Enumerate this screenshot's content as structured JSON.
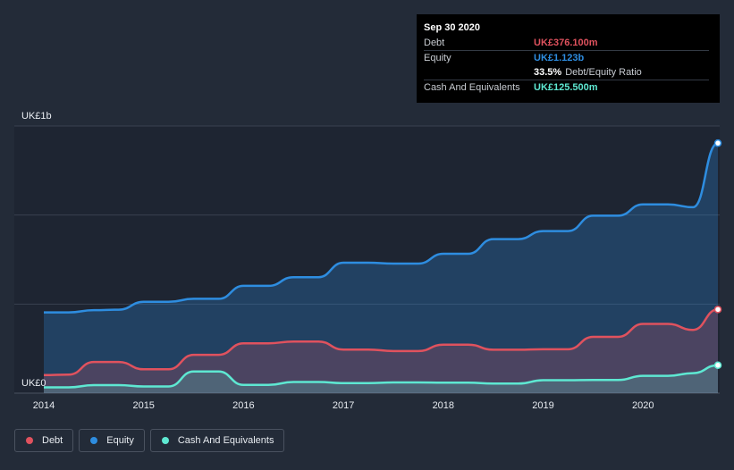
{
  "chart_data": {
    "type": "area",
    "x_axis": {
      "ticks": [
        "2014",
        "2015",
        "2016",
        "2017",
        "2018",
        "2019",
        "2020"
      ],
      "range": [
        2014.0,
        2020.75
      ]
    },
    "y_axis": {
      "top_label": "UK£1b",
      "bottom_label": "UK£0",
      "range": [
        0,
        1.2
      ]
    },
    "series": [
      {
        "name": "Equity",
        "color": "#2e8de0",
        "x": [
          2014.0,
          2014.25,
          2014.5,
          2014.75,
          2015.0,
          2015.25,
          2015.5,
          2015.75,
          2016.0,
          2016.25,
          2016.5,
          2016.75,
          2017.0,
          2017.25,
          2017.5,
          2017.75,
          2018.0,
          2018.25,
          2018.5,
          2018.75,
          2019.0,
          2019.25,
          2019.5,
          2019.75,
          2020.0,
          2020.25,
          2020.5,
          2020.75
        ],
        "values": [
          0.363,
          0.363,
          0.373,
          0.375,
          0.41,
          0.41,
          0.424,
          0.424,
          0.482,
          0.482,
          0.521,
          0.521,
          0.586,
          0.586,
          0.582,
          0.582,
          0.626,
          0.626,
          0.692,
          0.692,
          0.728,
          0.728,
          0.797,
          0.797,
          0.848,
          0.848,
          0.835,
          1.123
        ]
      },
      {
        "name": "Debt",
        "color": "#e0525e",
        "x": [
          2014.0,
          2014.25,
          2014.5,
          2014.75,
          2015.0,
          2015.25,
          2015.5,
          2015.75,
          2016.0,
          2016.25,
          2016.5,
          2016.75,
          2017.0,
          2017.25,
          2017.5,
          2017.75,
          2018.0,
          2018.25,
          2018.5,
          2018.75,
          2019.0,
          2019.25,
          2019.5,
          2019.75,
          2020.0,
          2020.25,
          2020.5,
          2020.75
        ],
        "values": [
          0.081,
          0.083,
          0.14,
          0.14,
          0.107,
          0.107,
          0.172,
          0.172,
          0.224,
          0.224,
          0.232,
          0.232,
          0.196,
          0.196,
          0.189,
          0.189,
          0.218,
          0.218,
          0.195,
          0.195,
          0.197,
          0.197,
          0.253,
          0.253,
          0.311,
          0.311,
          0.284,
          0.376
        ]
      },
      {
        "name": "Cash And Equivalents",
        "color": "#5ee8d2",
        "x": [
          2014.0,
          2014.25,
          2014.5,
          2014.75,
          2015.0,
          2015.25,
          2015.5,
          2015.75,
          2016.0,
          2016.25,
          2016.5,
          2016.75,
          2017.0,
          2017.25,
          2017.5,
          2017.75,
          2018.0,
          2018.25,
          2018.5,
          2018.75,
          2019.0,
          2019.25,
          2019.5,
          2019.75,
          2020.0,
          2020.25,
          2020.5,
          2020.75
        ],
        "values": [
          0.026,
          0.026,
          0.036,
          0.036,
          0.03,
          0.03,
          0.097,
          0.097,
          0.037,
          0.037,
          0.05,
          0.05,
          0.045,
          0.045,
          0.048,
          0.048,
          0.047,
          0.047,
          0.043,
          0.043,
          0.058,
          0.058,
          0.059,
          0.059,
          0.078,
          0.078,
          0.09,
          0.1255
        ]
      }
    ]
  },
  "tooltip": {
    "date": "Sep 30 2020",
    "rows": [
      {
        "name": "Debt",
        "value": "UK£376.100m",
        "color": "#e0525e"
      },
      {
        "name": "Equity",
        "value": "UK£1.123b",
        "color": "#2e8de0"
      },
      {
        "name": "",
        "value": "33.5%",
        "suffix": "Debt/Equity Ratio",
        "color": "#ffffff"
      },
      {
        "name": "Cash And Equivalents",
        "value": "UK£125.500m",
        "color": "#5ee8d2"
      }
    ]
  },
  "legend": [
    {
      "label": "Debt",
      "color": "#e0525e"
    },
    {
      "label": "Equity",
      "color": "#2e8de0"
    },
    {
      "label": "Cash And Equivalents",
      "color": "#5ee8d2"
    }
  ]
}
